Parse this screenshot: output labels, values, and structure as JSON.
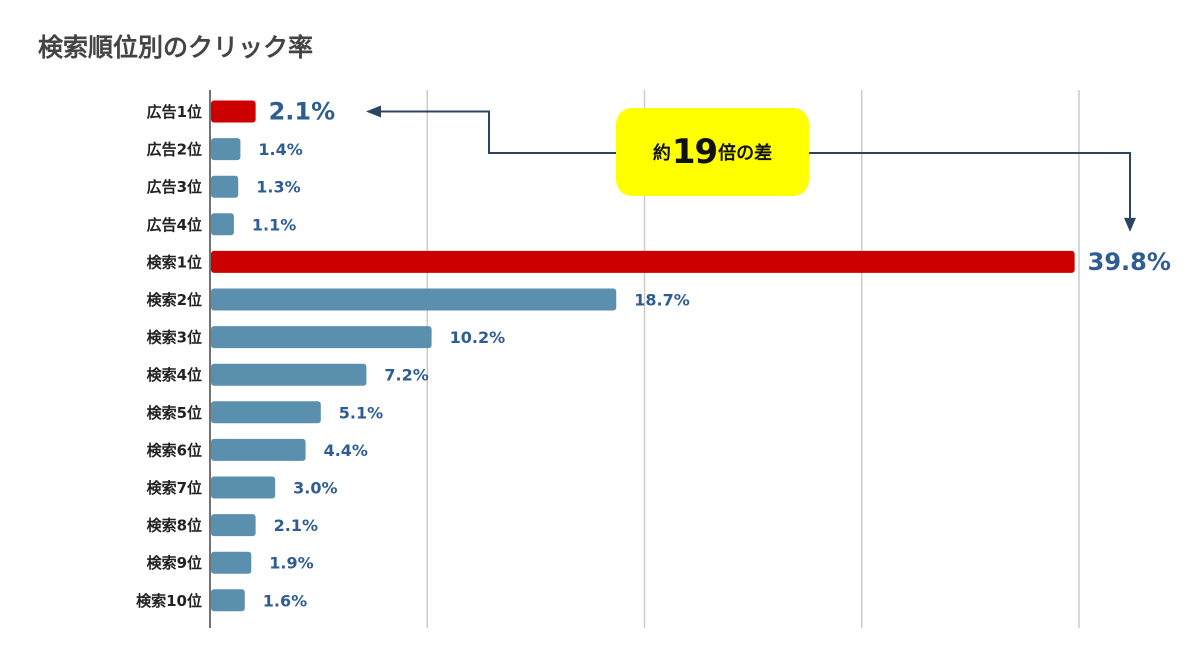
{
  "chart_data": {
    "type": "bar",
    "orientation": "horizontal",
    "title": "検索順位別のクリック率",
    "categories": [
      "広告1位",
      "広告2位",
      "広告3位",
      "広告4位",
      "検索1位",
      "検索2位",
      "検索3位",
      "検索4位",
      "検索5位",
      "検索6位",
      "検索7位",
      "検索8位",
      "検索9位",
      "検索10位"
    ],
    "values": [
      2.1,
      1.4,
      1.3,
      1.1,
      39.8,
      18.7,
      10.2,
      7.2,
      5.1,
      4.4,
      3.0,
      2.1,
      1.9,
      1.6
    ],
    "value_labels": [
      "2.1%",
      "1.4%",
      "1.3%",
      "1.1%",
      "39.8%",
      "18.7%",
      "10.2%",
      "7.2%",
      "5.1%",
      "4.4%",
      "3.0%",
      "2.1%",
      "1.9%",
      "1.6%"
    ],
    "highlighted": [
      0,
      4
    ],
    "xlim": [
      0,
      40
    ],
    "grid": true,
    "xlabel": "",
    "ylabel": "",
    "annotation": {
      "prefix": "約",
      "number": "19",
      "suffix": "倍の差",
      "from_category": "検索1位",
      "to_category": "広告1位"
    }
  },
  "colors": {
    "bar_default": "#5b8fae",
    "bar_highlight": "#cc0000",
    "value_text": "#2e5d93",
    "category_text": "#222222",
    "gridline": "#cccccc",
    "axis": "#444444",
    "callout_bg": "#ffff00",
    "arrow": "#2b4462"
  }
}
